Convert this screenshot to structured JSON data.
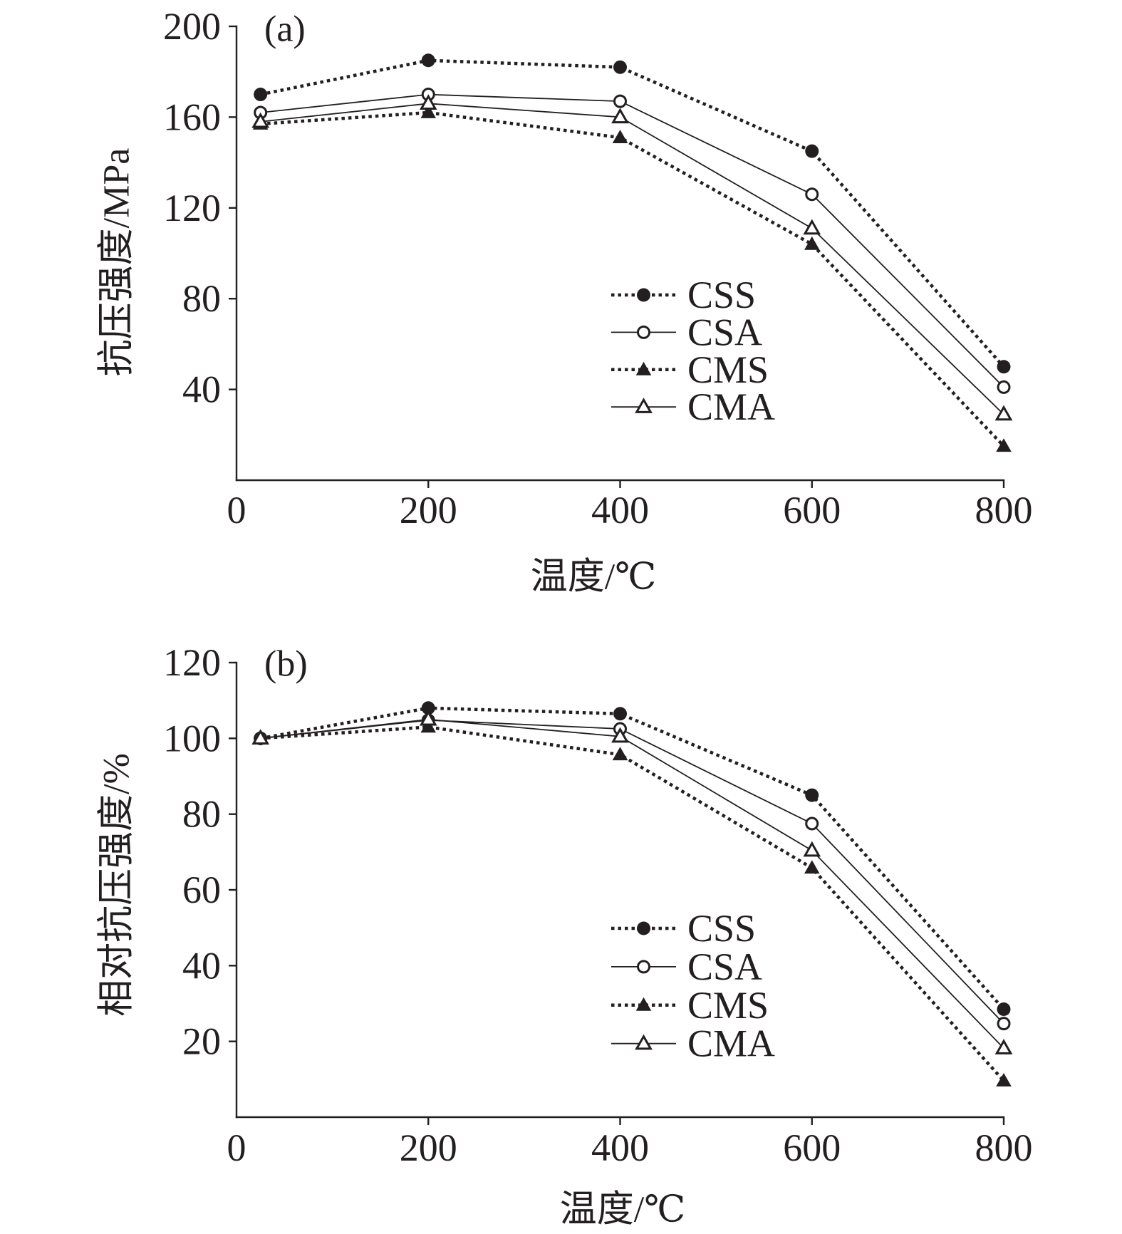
{
  "chart_data": [
    {
      "type": "line",
      "panel_label": "(a)",
      "xlabel": "温度/℃",
      "ylabel": "抗压强度/MPa",
      "xlim": [
        0,
        800
      ],
      "ylim": [
        0,
        200
      ],
      "xticks": [
        0,
        200,
        400,
        600,
        800
      ],
      "yticks": [
        40,
        80,
        120,
        160,
        200
      ],
      "grid": false,
      "legend_position": "right",
      "x": [
        25,
        200,
        400,
        600,
        800
      ],
      "series": [
        {
          "name": "CSS",
          "marker": "filled-circle",
          "line_style": "dotted",
          "color": "#231f20",
          "values": [
            170,
            185,
            182,
            145,
            50
          ]
        },
        {
          "name": "CSA",
          "marker": "open-circle",
          "line_style": "solid",
          "color": "#231f20",
          "values": [
            162,
            170,
            167,
            126,
            41
          ]
        },
        {
          "name": "CMS",
          "marker": "filled-triangle",
          "line_style": "dotted",
          "color": "#231f20",
          "values": [
            157,
            162,
            151,
            104,
            15
          ]
        },
        {
          "name": "CMA",
          "marker": "open-triangle",
          "line_style": "solid",
          "color": "#231f20",
          "values": [
            158,
            166,
            160,
            111,
            29
          ]
        }
      ]
    },
    {
      "type": "line",
      "panel_label": "(b)",
      "xlabel": "温度/℃",
      "ylabel": "相对抗压强度/%",
      "xlim": [
        0,
        800
      ],
      "ylim": [
        0,
        120
      ],
      "xticks": [
        0,
        200,
        400,
        600,
        800
      ],
      "yticks": [
        20,
        40,
        60,
        80,
        100,
        120
      ],
      "grid": false,
      "legend_position": "right",
      "x": [
        25,
        200,
        400,
        600,
        800
      ],
      "series": [
        {
          "name": "CSS",
          "marker": "filled-circle",
          "line_style": "dotted",
          "color": "#231f20",
          "values": [
            100,
            108,
            106.5,
            85,
            28.5
          ]
        },
        {
          "name": "CSA",
          "marker": "open-circle",
          "line_style": "solid",
          "color": "#231f20",
          "values": [
            100,
            104.8,
            102.5,
            77.5,
            24.7
          ]
        },
        {
          "name": "CMS",
          "marker": "filled-triangle",
          "line_style": "dotted",
          "color": "#231f20",
          "values": [
            100,
            103,
            95.7,
            65.8,
            9.6
          ]
        },
        {
          "name": "CMA",
          "marker": "open-triangle",
          "line_style": "solid",
          "color": "#231f20",
          "values": [
            100,
            105,
            100.5,
            70.4,
            18.2
          ]
        }
      ]
    }
  ]
}
